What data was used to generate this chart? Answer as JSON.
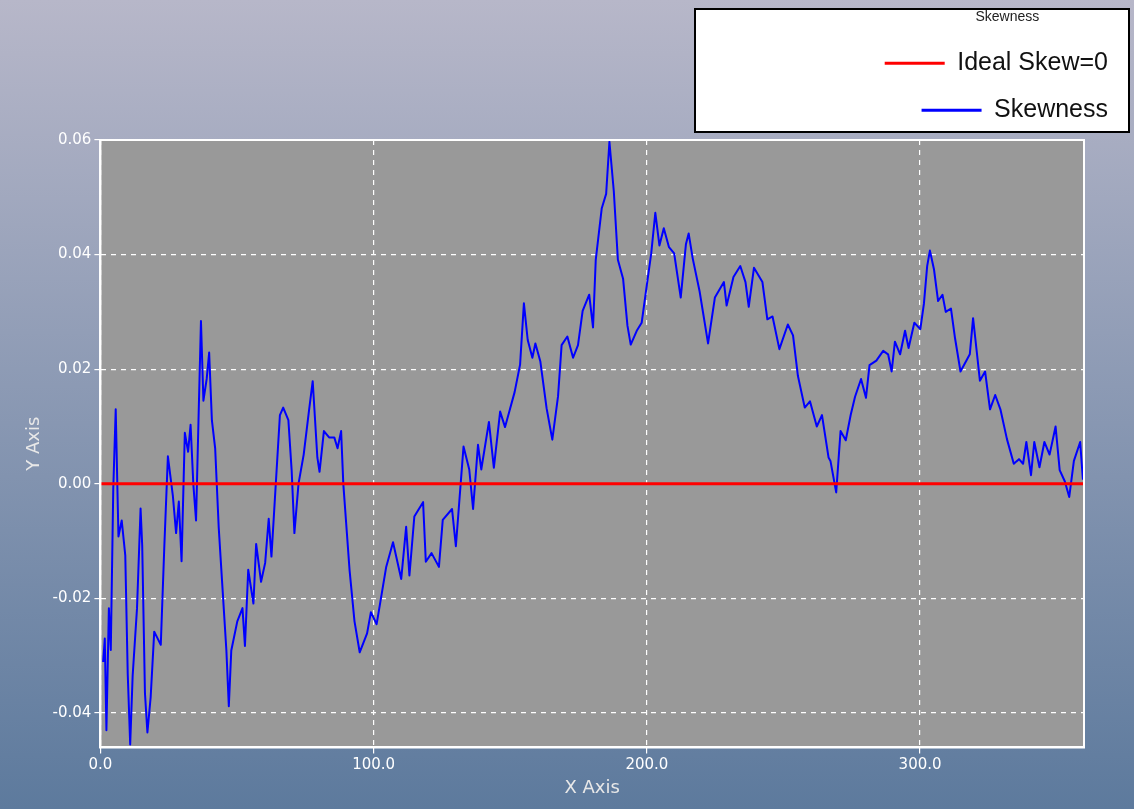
{
  "chart_data": {
    "type": "line",
    "xlabel": "X Axis",
    "ylabel": "Y Axis",
    "legend_title": "Skewness",
    "legend": "top right",
    "grid": true,
    "marker": "none",
    "line_style": "solid",
    "xlim": [
      0,
      360
    ],
    "xticks": [
      {
        "value": 0,
        "label": "0.0"
      },
      {
        "value": 100,
        "label": "100.0"
      },
      {
        "value": 200,
        "label": "200.0"
      },
      {
        "value": 300,
        "label": "300.0"
      }
    ],
    "ylim": [
      -0.046,
      0.06
    ],
    "yticks": [
      {
        "value": -0.04,
        "label": "-0.04"
      },
      {
        "value": -0.02,
        "label": "-0.02"
      },
      {
        "value": 0,
        "label": "0.00"
      },
      {
        "value": 0.02,
        "label": "0.02"
      },
      {
        "value": 0.04,
        "label": "0.04"
      },
      {
        "value": 0.06,
        "label": "0.06"
      }
    ],
    "series": [
      {
        "name": "Ideal Skew=0",
        "color": "#ff0000",
        "x": [
          0,
          360
        ],
        "values": [
          0,
          0
        ]
      },
      {
        "name": "Skewness",
        "color": "#0000ff",
        "x": [
          1.0,
          1.6,
          2.2,
          3.1,
          3.8,
          4.7,
          5.6,
          6.6,
          7.8,
          9.1,
          10.0,
          10.9,
          11.8,
          13.4,
          14.7,
          15.3,
          16.3,
          17.2,
          18.4,
          19.7,
          22.1,
          23.4,
          24.7,
          26.5,
          27.7,
          28.7,
          29.7,
          30.9,
          32.1,
          33.0,
          34.0,
          35.0,
          35.9,
          36.8,
          37.7,
          38.9,
          39.8,
          40.8,
          42.0,
          43.3,
          44.5,
          46.1,
          47.0,
          47.9,
          50.1,
          52.0,
          52.9,
          54.1,
          56.0,
          57.0,
          58.8,
          60.3,
          61.6,
          62.6,
          63.8,
          65.7,
          66.9,
          68.8,
          70.0,
          71.0,
          72.5,
          74.4,
          76.2,
          77.7,
          79.4,
          80.2,
          81.8,
          83.7,
          85.6,
          86.8,
          88.1,
          88.9,
          91.2,
          93.0,
          94.9,
          97.6,
          99.0,
          101.1,
          104.6,
          107.1,
          110.1,
          111.9,
          113.1,
          114.9,
          118.1,
          119.1,
          121.2,
          123.9,
          125.3,
          128.7,
          130.1,
          132.9,
          135.0,
          136.4,
          138.2,
          139.4,
          142.2,
          144.0,
          146.3,
          148.1,
          151.6,
          153.6,
          155.0,
          156.4,
          158.1,
          159.2,
          161.0,
          163.3,
          165.4,
          167.5,
          168.8,
          170.9,
          173.0,
          174.8,
          176.5,
          178.9,
          180.3,
          181.3,
          183.5,
          185.1,
          186.3,
          187.9,
          189.4,
          191.3,
          192.9,
          194.1,
          196.3,
          198.1,
          200.0,
          201.6,
          203.1,
          204.6,
          206.2,
          208.1,
          210.0,
          212.4,
          214.3,
          215.3,
          216.8,
          219.3,
          222.4,
          224.9,
          228.2,
          229.2,
          231.7,
          234.2,
          236.1,
          237.3,
          239.2,
          242.3,
          244.1,
          246.0,
          248.5,
          251.6,
          253.5,
          255.3,
          257.8,
          259.7,
          262.2,
          264.1,
          266.5,
          267.2,
          269.3,
          270.9,
          272.8,
          274.6,
          276.2,
          278.4,
          280.2,
          281.5,
          284.0,
          286.5,
          288.3,
          289.6,
          290.8,
          292.7,
          294.5,
          295.8,
          297.9,
          300.1,
          301.4,
          302.6,
          303.6,
          305.1,
          306.6,
          308.2,
          309.4,
          311.3,
          312.8,
          314.8,
          318.2,
          319.4,
          320.6,
          321.9,
          323.8,
          325.6,
          327.5,
          329.4,
          331.8,
          334.3,
          336.2,
          337.7,
          338.9,
          340.6,
          341.8,
          343.7,
          345.5,
          347.4,
          349.6,
          351.1,
          353.0,
          354.6,
          356.3,
          358.6,
          359.6
        ],
        "values": [
          -0.0311,
          -0.027,
          -0.043,
          -0.0217,
          -0.029,
          -0.001,
          0.013,
          -0.0092,
          -0.0064,
          -0.0125,
          -0.0332,
          -0.0455,
          -0.0335,
          -0.0217,
          -0.0043,
          -0.0108,
          -0.0365,
          -0.0434,
          -0.0372,
          -0.0258,
          -0.0281,
          -0.0108,
          0.0048,
          -0.002,
          -0.0086,
          -0.0031,
          -0.0135,
          0.0089,
          0.0056,
          0.0103,
          0.0,
          -0.0064,
          0.0111,
          0.0284,
          0.0145,
          0.0183,
          0.0229,
          0.0111,
          0.0062,
          -0.0076,
          -0.0168,
          -0.029,
          -0.0388,
          -0.0291,
          -0.024,
          -0.0217,
          -0.0283,
          -0.015,
          -0.0209,
          -0.0105,
          -0.0171,
          -0.0138,
          -0.0061,
          -0.0127,
          -0.0031,
          0.012,
          0.0133,
          0.0111,
          0.0023,
          -0.0086,
          0.0,
          0.0051,
          0.0122,
          0.0179,
          0.0046,
          0.0021,
          0.0092,
          0.0081,
          0.0081,
          0.0062,
          0.0092,
          0.0,
          -0.0151,
          -0.024,
          -0.0294,
          -0.0261,
          -0.0224,
          -0.0245,
          -0.0145,
          -0.0102,
          -0.0166,
          -0.0075,
          -0.016,
          -0.0057,
          -0.0032,
          -0.0136,
          -0.0121,
          -0.0145,
          -0.0063,
          -0.0044,
          -0.0109,
          0.0065,
          0.0025,
          -0.0044,
          0.0068,
          0.0025,
          0.0108,
          0.0028,
          0.0126,
          0.0099,
          0.016,
          0.0208,
          0.0315,
          0.0251,
          0.022,
          0.0245,
          0.0214,
          0.0132,
          0.0077,
          0.0153,
          0.0242,
          0.0257,
          0.022,
          0.0242,
          0.0302,
          0.033,
          0.0273,
          0.0391,
          0.0481,
          0.0506,
          0.0597,
          0.0511,
          0.0391,
          0.0358,
          0.0276,
          0.0243,
          0.0267,
          0.0281,
          0.0347,
          0.0402,
          0.0473,
          0.0416,
          0.0446,
          0.0413,
          0.0402,
          0.0325,
          0.0418,
          0.0437,
          0.0393,
          0.0336,
          0.0245,
          0.0325,
          0.0352,
          0.0311,
          0.0361,
          0.038,
          0.0352,
          0.0309,
          0.0377,
          0.0352,
          0.0287,
          0.0292,
          0.0235,
          0.0278,
          0.0259,
          0.0188,
          0.0133,
          0.0144,
          0.01,
          0.012,
          0.0046,
          0.004,
          -0.0015,
          0.0092,
          0.0076,
          0.012,
          0.0152,
          0.0183,
          0.015,
          0.0207,
          0.0215,
          0.0232,
          0.0226,
          0.0196,
          0.0248,
          0.0226,
          0.0267,
          0.0237,
          0.0281,
          0.027,
          0.0314,
          0.038,
          0.0407,
          0.0374,
          0.0319,
          0.033,
          0.03,
          0.0306,
          0.0254,
          0.0196,
          0.0226,
          0.0289,
          0.0237,
          0.018,
          0.0196,
          0.013,
          0.0155,
          0.013,
          0.0078,
          0.0035,
          0.0043,
          0.0035,
          0.0073,
          0.0015,
          0.0073,
          0.0029,
          0.0073,
          0.0051,
          0.01,
          0.0024,
          0.0004,
          -0.0023,
          0.004,
          0.0073,
          0.0007
        ]
      }
    ]
  }
}
